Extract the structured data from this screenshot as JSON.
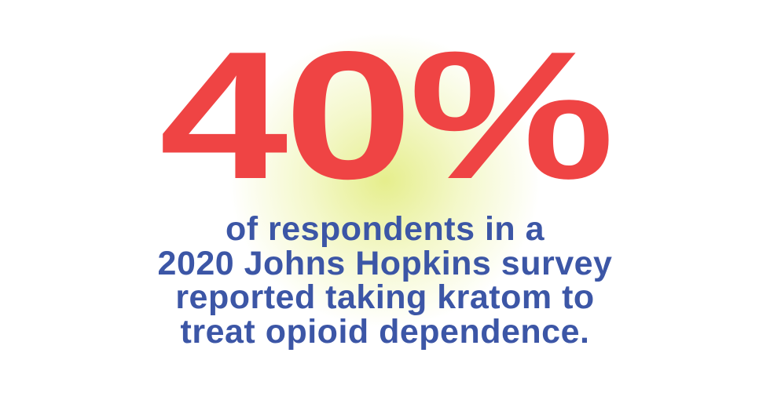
{
  "statistic": {
    "value": "40%",
    "color": "#ef4444"
  },
  "caption": {
    "color": "#3c56a6",
    "lines": [
      "of respondents in a",
      "2020 Johns Hopkins survey",
      "reported taking kratom to",
      "treat opioid dependence."
    ]
  }
}
